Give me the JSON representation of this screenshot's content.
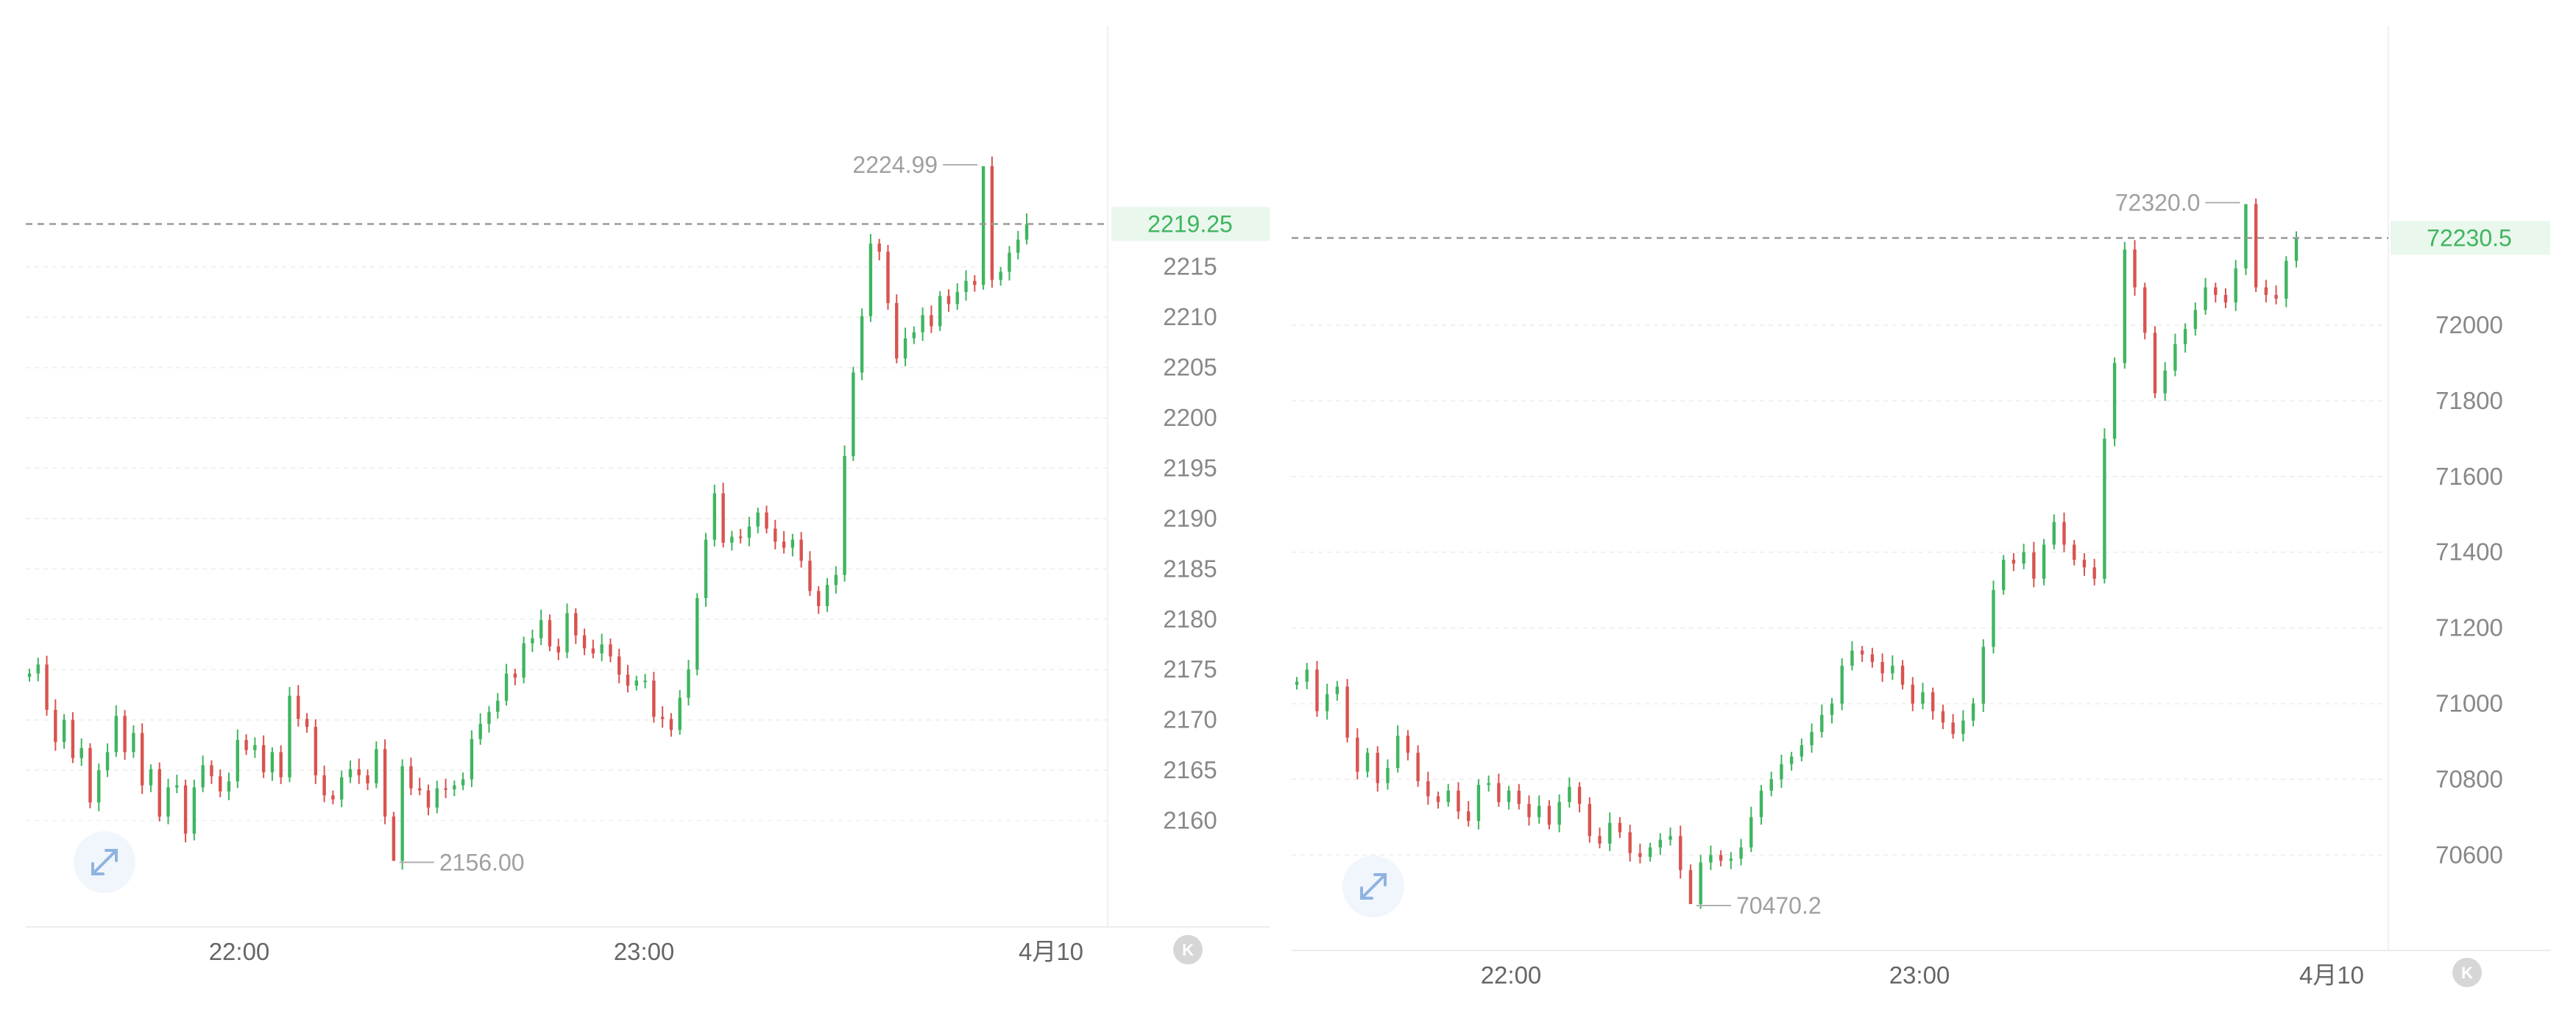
{
  "chart_data": [
    {
      "type": "candlestick",
      "xlabel_ticks": [
        "22:00",
        "23:00",
        "4月10"
      ],
      "yticks": [
        2215,
        2210,
        2205,
        2200,
        2195,
        2190,
        2185,
        2180,
        2175,
        2170,
        2165,
        2160
      ],
      "ylim": [
        2152,
        2232
      ],
      "current_price": 2219.25,
      "current_price_label": "2219.25",
      "high_label": "2224.99",
      "low_label": "2156.00",
      "grid": true,
      "up_color": "#3fb55f",
      "down_color": "#d9534f",
      "close_series": [
        2174.6,
        2175.5,
        2171,
        2167.8,
        2170,
        2166.2,
        2167.2,
        2161.8,
        2165,
        2166.8,
        2170.4,
        2166.8,
        2168.7,
        2163.5,
        2165.1,
        2160.4,
        2163.3,
        2163.5,
        2158.7,
        2163.3,
        2165.5,
        2164.4,
        2162.9,
        2163.9,
        2168,
        2167,
        2167.5,
        2164.8,
        2166.8,
        2164.3,
        2172.4,
        2170.1,
        2169.3,
        2164.5,
        2162.5,
        2162.1,
        2164.3,
        2165.1,
        2164.5,
        2163.7,
        2167.1,
        2160.4,
        2156,
        2165.4,
        2163.2,
        2163,
        2161.3,
        2163.2,
        2163.1,
        2163.5,
        2164.1,
        2168.1,
        2169.6,
        2170.8,
        2171.9,
        2174.6,
        2174.2,
        2177.6,
        2178.1,
        2179.9,
        2177.3,
        2176.7,
        2180.6,
        2178.4,
        2177.1,
        2176.6,
        2177.5,
        2176.3,
        2174.5,
        2173.4,
        2173.9,
        2173.9,
        2170.3,
        2170.1,
        2169,
        2172.2,
        2175,
        2182.1,
        2187.9,
        2192.5,
        2187.6,
        2188.2,
        2188.1,
        2189.2,
        2190.6,
        2189,
        2187.7,
        2187.1,
        2187.9,
        2185.8,
        2182.8,
        2181.3,
        2183.4,
        2184.4,
        2196.2,
        2204.5,
        2210.1,
        2217.3,
        2216.5,
        2211.4,
        2205.9,
        2207.9,
        2208.5,
        2210.2,
        2209.1,
        2212.1,
        2211.3,
        2212.5,
        2213.6,
        2213.2,
        2224.99,
        2213.7,
        2214.5,
        2216.4,
        2217.7,
        2219.25
      ],
      "series": [
        {
          "values": [
            2174.6,
            2175.5,
            2171,
            2167.8,
            2170,
            2166.2,
            2167.2,
            2161.8,
            2165,
            2166.8,
            2170.4,
            2166.8,
            2168.7,
            2163.5,
            2165.1,
            2160.4,
            2163.3,
            2163.5,
            2158.7,
            2163.3,
            2165.5,
            2164.4,
            2162.9,
            2163.9,
            2168,
            2167,
            2167.5,
            2164.8,
            2166.8,
            2164.3,
            2172.4,
            2170.1,
            2169.3,
            2164.5,
            2162.5,
            2162.1,
            2164.3,
            2165.1,
            2164.5,
            2163.7,
            2167.1,
            2160.4,
            2156,
            2165.4,
            2163.2,
            2163,
            2161.3,
            2163.2,
            2163.1,
            2163.5,
            2164.1,
            2168.1,
            2169.6,
            2170.8,
            2171.9,
            2174.6,
            2174.2,
            2177.6,
            2178.1,
            2179.9,
            2177.3,
            2176.7,
            2180.6,
            2178.4,
            2177.1,
            2176.6,
            2177.5,
            2176.3,
            2174.5,
            2173.4,
            2173.9,
            2173.9,
            2170.3,
            2170.1,
            2169,
            2172.2,
            2175,
            2182.1,
            2187.9,
            2192.5,
            2187.6,
            2188.2,
            2188.1,
            2189.2,
            2190.6,
            2189,
            2187.7,
            2187.1,
            2187.9,
            2185.8,
            2182.8,
            2181.3,
            2183.4,
            2184.4,
            2196.2,
            2204.5,
            2210.1,
            2217.3,
            2216.5,
            2211.4,
            2205.9,
            2207.9,
            2208.5,
            2210.2,
            2209.1,
            2212.1,
            2211.3,
            2212.5,
            2213.6,
            2213.2,
            2224.99,
            2213.7,
            2214.5,
            2216.4,
            2217.7,
            2219.25
          ]
        }
      ]
    },
    {
      "type": "candlestick",
      "xlabel_ticks": [
        "22:00",
        "23:00",
        "4月10"
      ],
      "yticks": [
        72000,
        71800,
        71600,
        71400,
        71200,
        71000,
        70800,
        70600
      ],
      "ylim": [
        70410,
        72490
      ],
      "current_price": 72230.5,
      "current_price_label": "72230.5",
      "high_label": "72320.0",
      "low_label": "70470.2",
      "grid": true,
      "up_color": "#3fb55f",
      "down_color": "#d9534f",
      "close_series": [
        71058,
        71090,
        70980,
        71025,
        71045,
        70910,
        70820,
        70870,
        70790,
        70830,
        70915,
        70870,
        70795,
        70755,
        70740,
        70770,
        70715,
        70690,
        70785,
        70790,
        70740,
        70770,
        70735,
        70700,
        70730,
        70680,
        70740,
        70780,
        70735,
        70650,
        70630,
        70685,
        70660,
        70605,
        70595,
        70620,
        70640,
        70650,
        70560,
        70470.2,
        70580,
        70600,
        70585,
        70590,
        70620,
        70700,
        70770,
        70800,
        70840,
        70860,
        70890,
        70925,
        70970,
        71000,
        71100,
        71140,
        71130,
        71110,
        71080,
        71100,
        71050,
        71000,
        71030,
        70980,
        70950,
        70920,
        70955,
        71000,
        71150,
        71300,
        71380,
        71370,
        71400,
        71330,
        71420,
        71480,
        71420,
        71380,
        71360,
        71330,
        71700,
        71900,
        72200,
        72100,
        71980,
        71820,
        71880,
        71950,
        71990,
        72040,
        72100,
        72080,
        72060,
        72150,
        72320.0,
        72100,
        72080,
        72070,
        72170,
        72230.5
      ],
      "series": [
        {
          "values": [
            71058,
            71090,
            70980,
            71025,
            71045,
            70910,
            70820,
            70870,
            70790,
            70830,
            70915,
            70870,
            70795,
            70755,
            70740,
            70770,
            70715,
            70690,
            70785,
            70790,
            70740,
            70770,
            70735,
            70700,
            70730,
            70680,
            70740,
            70780,
            70735,
            70650,
            70630,
            70685,
            70660,
            70605,
            70595,
            70620,
            70640,
            70650,
            70560,
            70470.2,
            70580,
            70600,
            70585,
            70590,
            70620,
            70700,
            70770,
            70800,
            70840,
            70860,
            70890,
            70925,
            70970,
            71000,
            71100,
            71140,
            71130,
            71110,
            71080,
            71100,
            71050,
            71000,
            71030,
            70980,
            70950,
            70920,
            70955,
            71000,
            71150,
            71300,
            71380,
            71370,
            71400,
            71330,
            71420,
            71480,
            71420,
            71380,
            71360,
            71330,
            71700,
            71900,
            72200,
            72100,
            71980,
            71820,
            71880,
            71950,
            71990,
            72040,
            72100,
            72080,
            72060,
            72150,
            72320.0,
            72100,
            72080,
            72070,
            72170,
            72230.5
          ]
        }
      ]
    }
  ],
  "icons": {
    "expand": "expand-arrows-icon",
    "corner": "k-badge-icon",
    "corner_glyph": "K"
  }
}
